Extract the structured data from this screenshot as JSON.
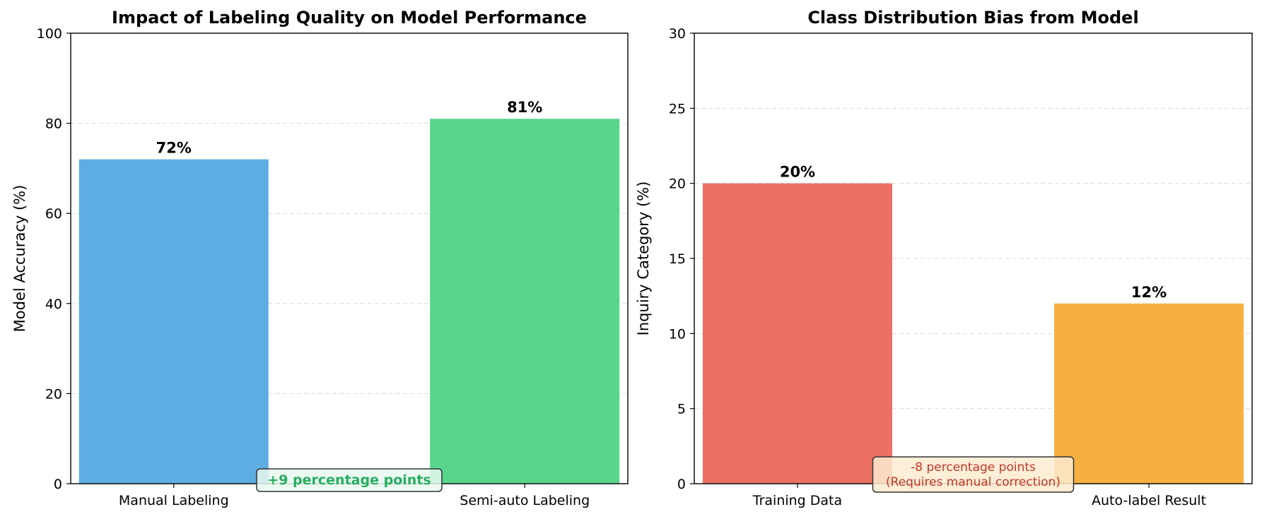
{
  "chart_data": [
    {
      "type": "bar",
      "title": "Impact of Labeling Quality on Model Performance",
      "xlabel": "",
      "ylabel": "Model Accuracy (%)",
      "ylim": [
        0,
        100
      ],
      "yticks": [
        0,
        20,
        40,
        60,
        80,
        100
      ],
      "categories": [
        "Manual Labeling",
        "Semi-auto Labeling"
      ],
      "values": [
        72,
        81
      ],
      "value_labels": [
        "72%",
        "81%"
      ],
      "colors": [
        "#5dade2",
        "#58d68d"
      ],
      "grid": "y dashed",
      "annotation": {
        "lines": [
          "+9 percentage points"
        ],
        "text_color": "#27ae60",
        "box_color": "#e8f8ef",
        "position": "bottom-center"
      }
    },
    {
      "type": "bar",
      "title": "Class Distribution Bias from Model",
      "xlabel": "",
      "ylabel": "Inquiry Category (%)",
      "ylim": [
        0,
        30
      ],
      "yticks": [
        0,
        5,
        10,
        15,
        20,
        25,
        30
      ],
      "categories": [
        "Training Data",
        "Auto-label Result"
      ],
      "values": [
        20,
        12
      ],
      "value_labels": [
        "20%",
        "12%"
      ],
      "colors": [
        "#ec7063",
        "#f5b041"
      ],
      "grid": "y dashed",
      "annotation": {
        "lines": [
          "-8 percentage points",
          "(Requires manual correction)"
        ],
        "text_color": "#c0392b",
        "box_color": "#fdebd0",
        "position": "bottom-center"
      }
    }
  ]
}
